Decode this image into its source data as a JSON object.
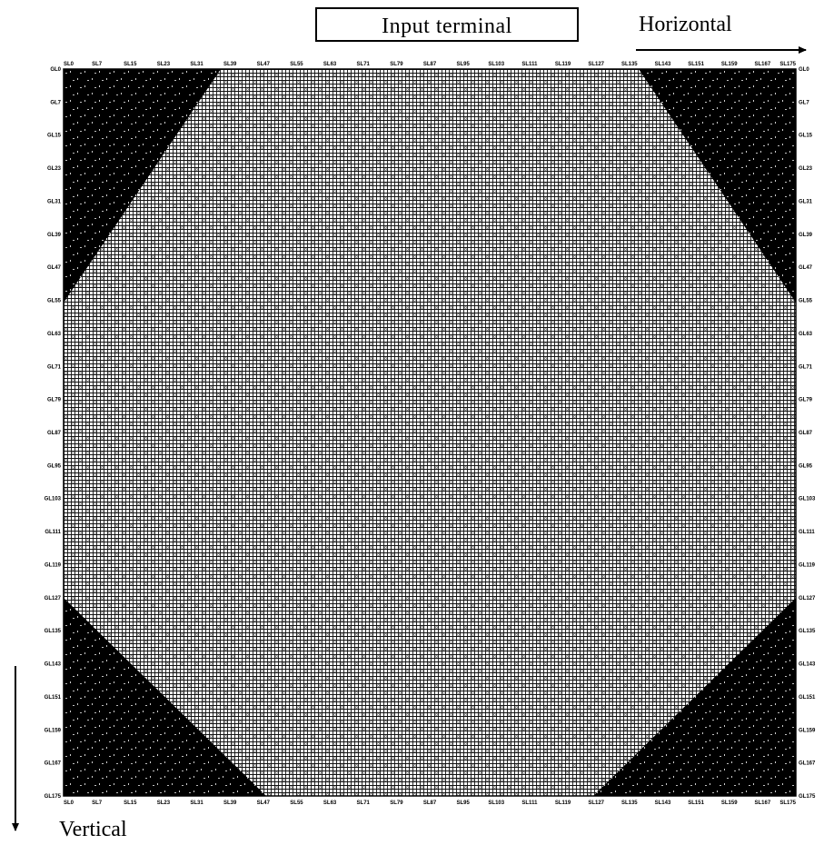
{
  "header": {
    "input_terminal_label": "Input terminal",
    "horizontal_label": "Horizontal"
  },
  "footer": {
    "vertical_label": "Vertical"
  },
  "grid": {
    "source_lines": [
      "SL0",
      "SL7",
      "SL15",
      "SL23",
      "SL31",
      "SL39",
      "SL47",
      "SL55",
      "SL63",
      "SL71",
      "SL79",
      "SL87",
      "SL95",
      "SL103",
      "SL111",
      "SL119",
      "SL127",
      "SL135",
      "SL143",
      "SL151",
      "SL159",
      "SL167",
      "SL175"
    ],
    "gate_lines": [
      "GL0",
      "GL7",
      "GL15",
      "GL23",
      "GL31",
      "GL39",
      "GL47",
      "GL55",
      "GL63",
      "GL71",
      "GL79",
      "GL87",
      "GL95",
      "GL103",
      "GL111",
      "GL119",
      "GL127",
      "GL135",
      "GL143",
      "GL151",
      "GL159",
      "GL167",
      "GL175"
    ],
    "line_count": 176,
    "dark_region_color": "#000000",
    "active_region_color": "#ffffff"
  }
}
